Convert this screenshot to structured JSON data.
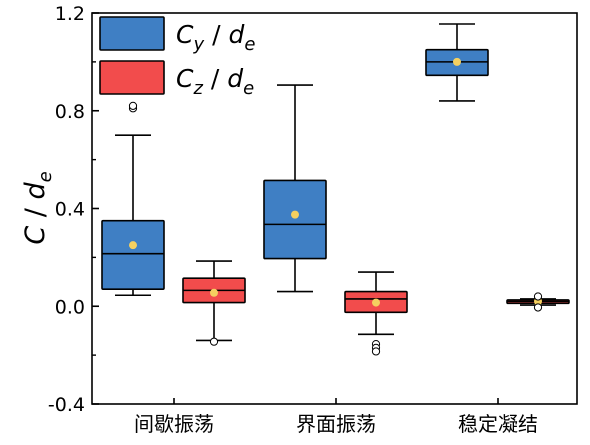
{
  "chart_data": {
    "type": "box",
    "ylabel_main": "C",
    "ylabel_sep": " / ",
    "ylabel_sub": "d",
    "ylabel_subscript": "e",
    "ylim": [
      -0.4,
      1.2
    ],
    "yticks": [
      "-0.4",
      "0.0",
      "0.4",
      "0.8",
      "1.2"
    ],
    "categories": [
      "间歇振荡",
      "界面振荡",
      "稳定凝结"
    ],
    "grid": false,
    "legend_position": "top-left",
    "series": [
      {
        "name_main": "C",
        "name_sub": "y",
        "name_sep": " / ",
        "name_denom": "d",
        "name_denom_sub": "e",
        "color": "#3F7FC4",
        "boxes": [
          {
            "whisker_low": 0.045,
            "q1": 0.07,
            "median": 0.215,
            "q3": 0.35,
            "whisker_high": 0.7,
            "mean": 0.25,
            "outliers": [
              0.81,
              0.82
            ]
          },
          {
            "whisker_low": 0.06,
            "q1": 0.195,
            "median": 0.335,
            "q3": 0.515,
            "whisker_high": 0.905,
            "mean": 0.375,
            "outliers": []
          },
          {
            "whisker_low": 0.84,
            "q1": 0.945,
            "median": 1.0,
            "q3": 1.05,
            "whisker_high": 1.155,
            "mean": 1.0,
            "outliers": []
          }
        ]
      },
      {
        "name_main": "C",
        "name_sub": "z",
        "name_sep": " / ",
        "name_denom": "d",
        "name_denom_sub": "e",
        "color": "#F24C4C",
        "boxes": [
          {
            "whisker_low": -0.14,
            "q1": 0.015,
            "median": 0.065,
            "q3": 0.115,
            "whisker_high": 0.185,
            "mean": 0.055,
            "outliers": [
              -0.145
            ]
          },
          {
            "whisker_low": -0.115,
            "q1": -0.025,
            "median": 0.03,
            "q3": 0.06,
            "whisker_high": 0.14,
            "mean": 0.015,
            "outliers": [
              -0.155,
              -0.17,
              -0.185
            ]
          },
          {
            "whisker_low": 0.005,
            "q1": 0.012,
            "median": 0.02,
            "q3": 0.026,
            "whisker_high": 0.03,
            "mean": 0.02,
            "outliers": [
              0.04,
              -0.005
            ]
          }
        ]
      }
    ],
    "mean_marker_color": "#F5D060"
  }
}
